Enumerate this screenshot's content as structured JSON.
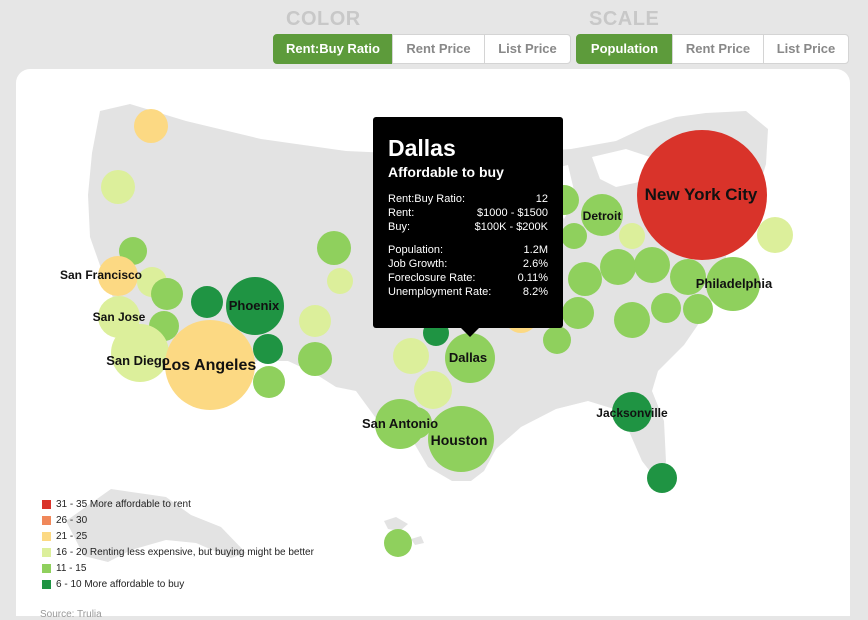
{
  "color_group": {
    "title": "COLOR",
    "buttons": [
      {
        "label": "Rent:Buy Ratio",
        "active": true
      },
      {
        "label": "Rent Price",
        "active": false
      },
      {
        "label": "List Price",
        "active": false
      }
    ]
  },
  "scale_group": {
    "title": "SCALE",
    "buttons": [
      {
        "label": "Population",
        "active": true
      },
      {
        "label": "Rent Price",
        "active": false
      },
      {
        "label": "List Price",
        "active": false
      }
    ]
  },
  "colors": {
    "c31_35": "#d9332a",
    "c26_30": "#f0885a",
    "c21_25": "#fcd983",
    "c16_20": "#dcef9b",
    "c11_15": "#8fd05d",
    "c6_10": "#1f9443",
    "land": "#e3e3e3",
    "accent": "#5d9b3b"
  },
  "legend": [
    {
      "label": "31 - 35 More affordable to rent",
      "color": "#d9332a"
    },
    {
      "label": "26 - 30",
      "color": "#f0885a"
    },
    {
      "label": "21 - 25",
      "color": "#fcd983"
    },
    {
      "label": "16 - 20 Renting less expensive, but buying might be better",
      "color": "#dcef9b"
    },
    {
      "label": "11 - 15",
      "color": "#8fd05d"
    },
    {
      "label": "6 - 10 More affordable to buy",
      "color": "#1f9443"
    }
  ],
  "tooltip": {
    "city": "Dallas",
    "subtitle": "Affordable to buy",
    "rows1": [
      {
        "label": "Rent:Buy Ratio:",
        "value": "12"
      },
      {
        "label": "Rent:",
        "value": "$1000 - $1500"
      },
      {
        "label": "Buy:",
        "value": "$100K - $200K"
      }
    ],
    "rows2": [
      {
        "label": "Population:",
        "value": "1.2M"
      },
      {
        "label": "Job Growth:",
        "value": "2.6%"
      },
      {
        "label": "Foreclosure Rate:",
        "value": "0.11%"
      },
      {
        "label": "Unemployment Rate:",
        "value": "8.2%"
      }
    ]
  },
  "city_labels": [
    "San Francisco",
    "San Jose",
    "San Diego",
    "Los Angeles",
    "Phoenix",
    "Dallas",
    "San Antonio",
    "Houston",
    "Detroit",
    "New York City",
    "Philadelphia",
    "Jacksonville"
  ],
  "footer": "Source: Trulia"
}
